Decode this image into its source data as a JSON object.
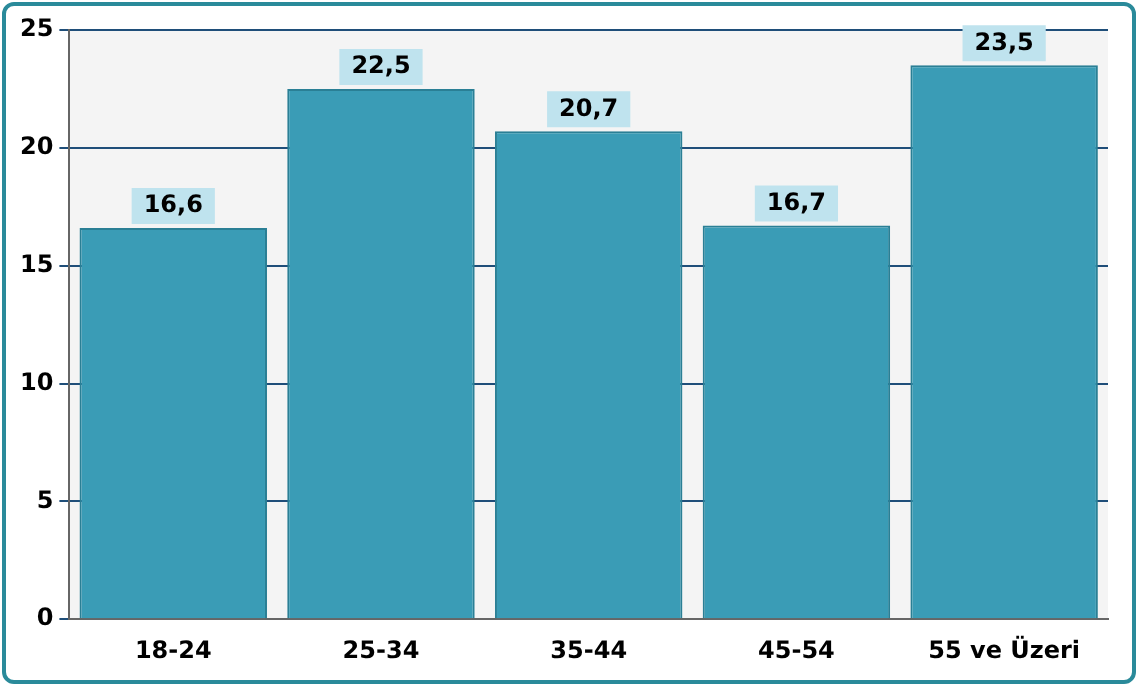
{
  "chart_data": {
    "type": "bar",
    "categories": [
      "18-24",
      "25-34",
      "35-44",
      "45-54",
      "55 ve Üzeri"
    ],
    "values": [
      16.6,
      22.5,
      20.7,
      16.7,
      23.5
    ],
    "value_labels": [
      "16,6",
      "22,5",
      "20,7",
      "16,7",
      "23,5"
    ],
    "color": "#3a9cb6",
    "ylim": [
      0,
      25
    ],
    "yticks": [
      0,
      5,
      10,
      15,
      20,
      25
    ],
    "grid": "y",
    "legend": false
  }
}
